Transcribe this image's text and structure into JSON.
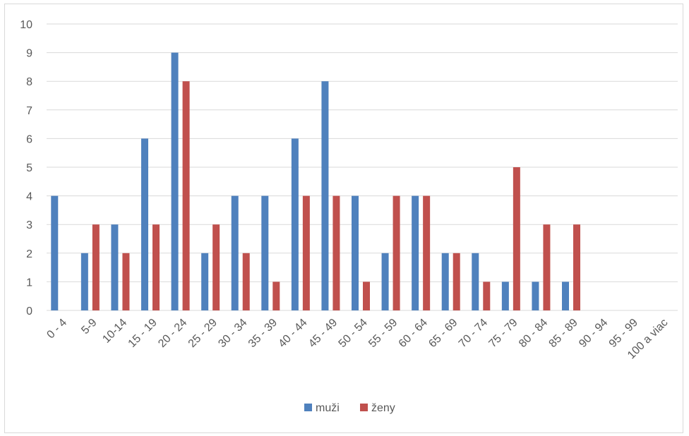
{
  "chart_data": {
    "type": "bar",
    "title": "",
    "xlabel": "",
    "ylabel": "",
    "ylim": [
      0,
      10
    ],
    "y_ticks": [
      "0",
      "1",
      "2",
      "3",
      "4",
      "5",
      "6",
      "7",
      "8",
      "9",
      "10"
    ],
    "grid": true,
    "legend_position": "bottom",
    "categories": [
      "0 - 4",
      "5-9",
      "10-14",
      "15 - 19",
      "20 - 24",
      "25 - 29",
      "30 - 34",
      "35 - 39",
      "40 - 44",
      "45 - 49",
      "50 - 54",
      "55 - 59",
      "60 - 64",
      "65 - 69",
      "70 - 74",
      "75 - 79",
      "80 - 84",
      "85 - 89",
      "90 - 94",
      "95 - 99",
      "100 a viac"
    ],
    "series": [
      {
        "name": "muži",
        "color": "#4f81bd",
        "values": [
          4,
          2,
          3,
          6,
          9,
          2,
          4,
          4,
          6,
          8,
          4,
          2,
          4,
          2,
          2,
          1,
          1,
          1,
          0,
          0,
          0
        ]
      },
      {
        "name": "ženy",
        "color": "#c0504d",
        "values": [
          0,
          3,
          2,
          3,
          8,
          3,
          2,
          1,
          4,
          4,
          1,
          4,
          4,
          2,
          1,
          5,
          3,
          3,
          0,
          0,
          0
        ]
      }
    ]
  }
}
